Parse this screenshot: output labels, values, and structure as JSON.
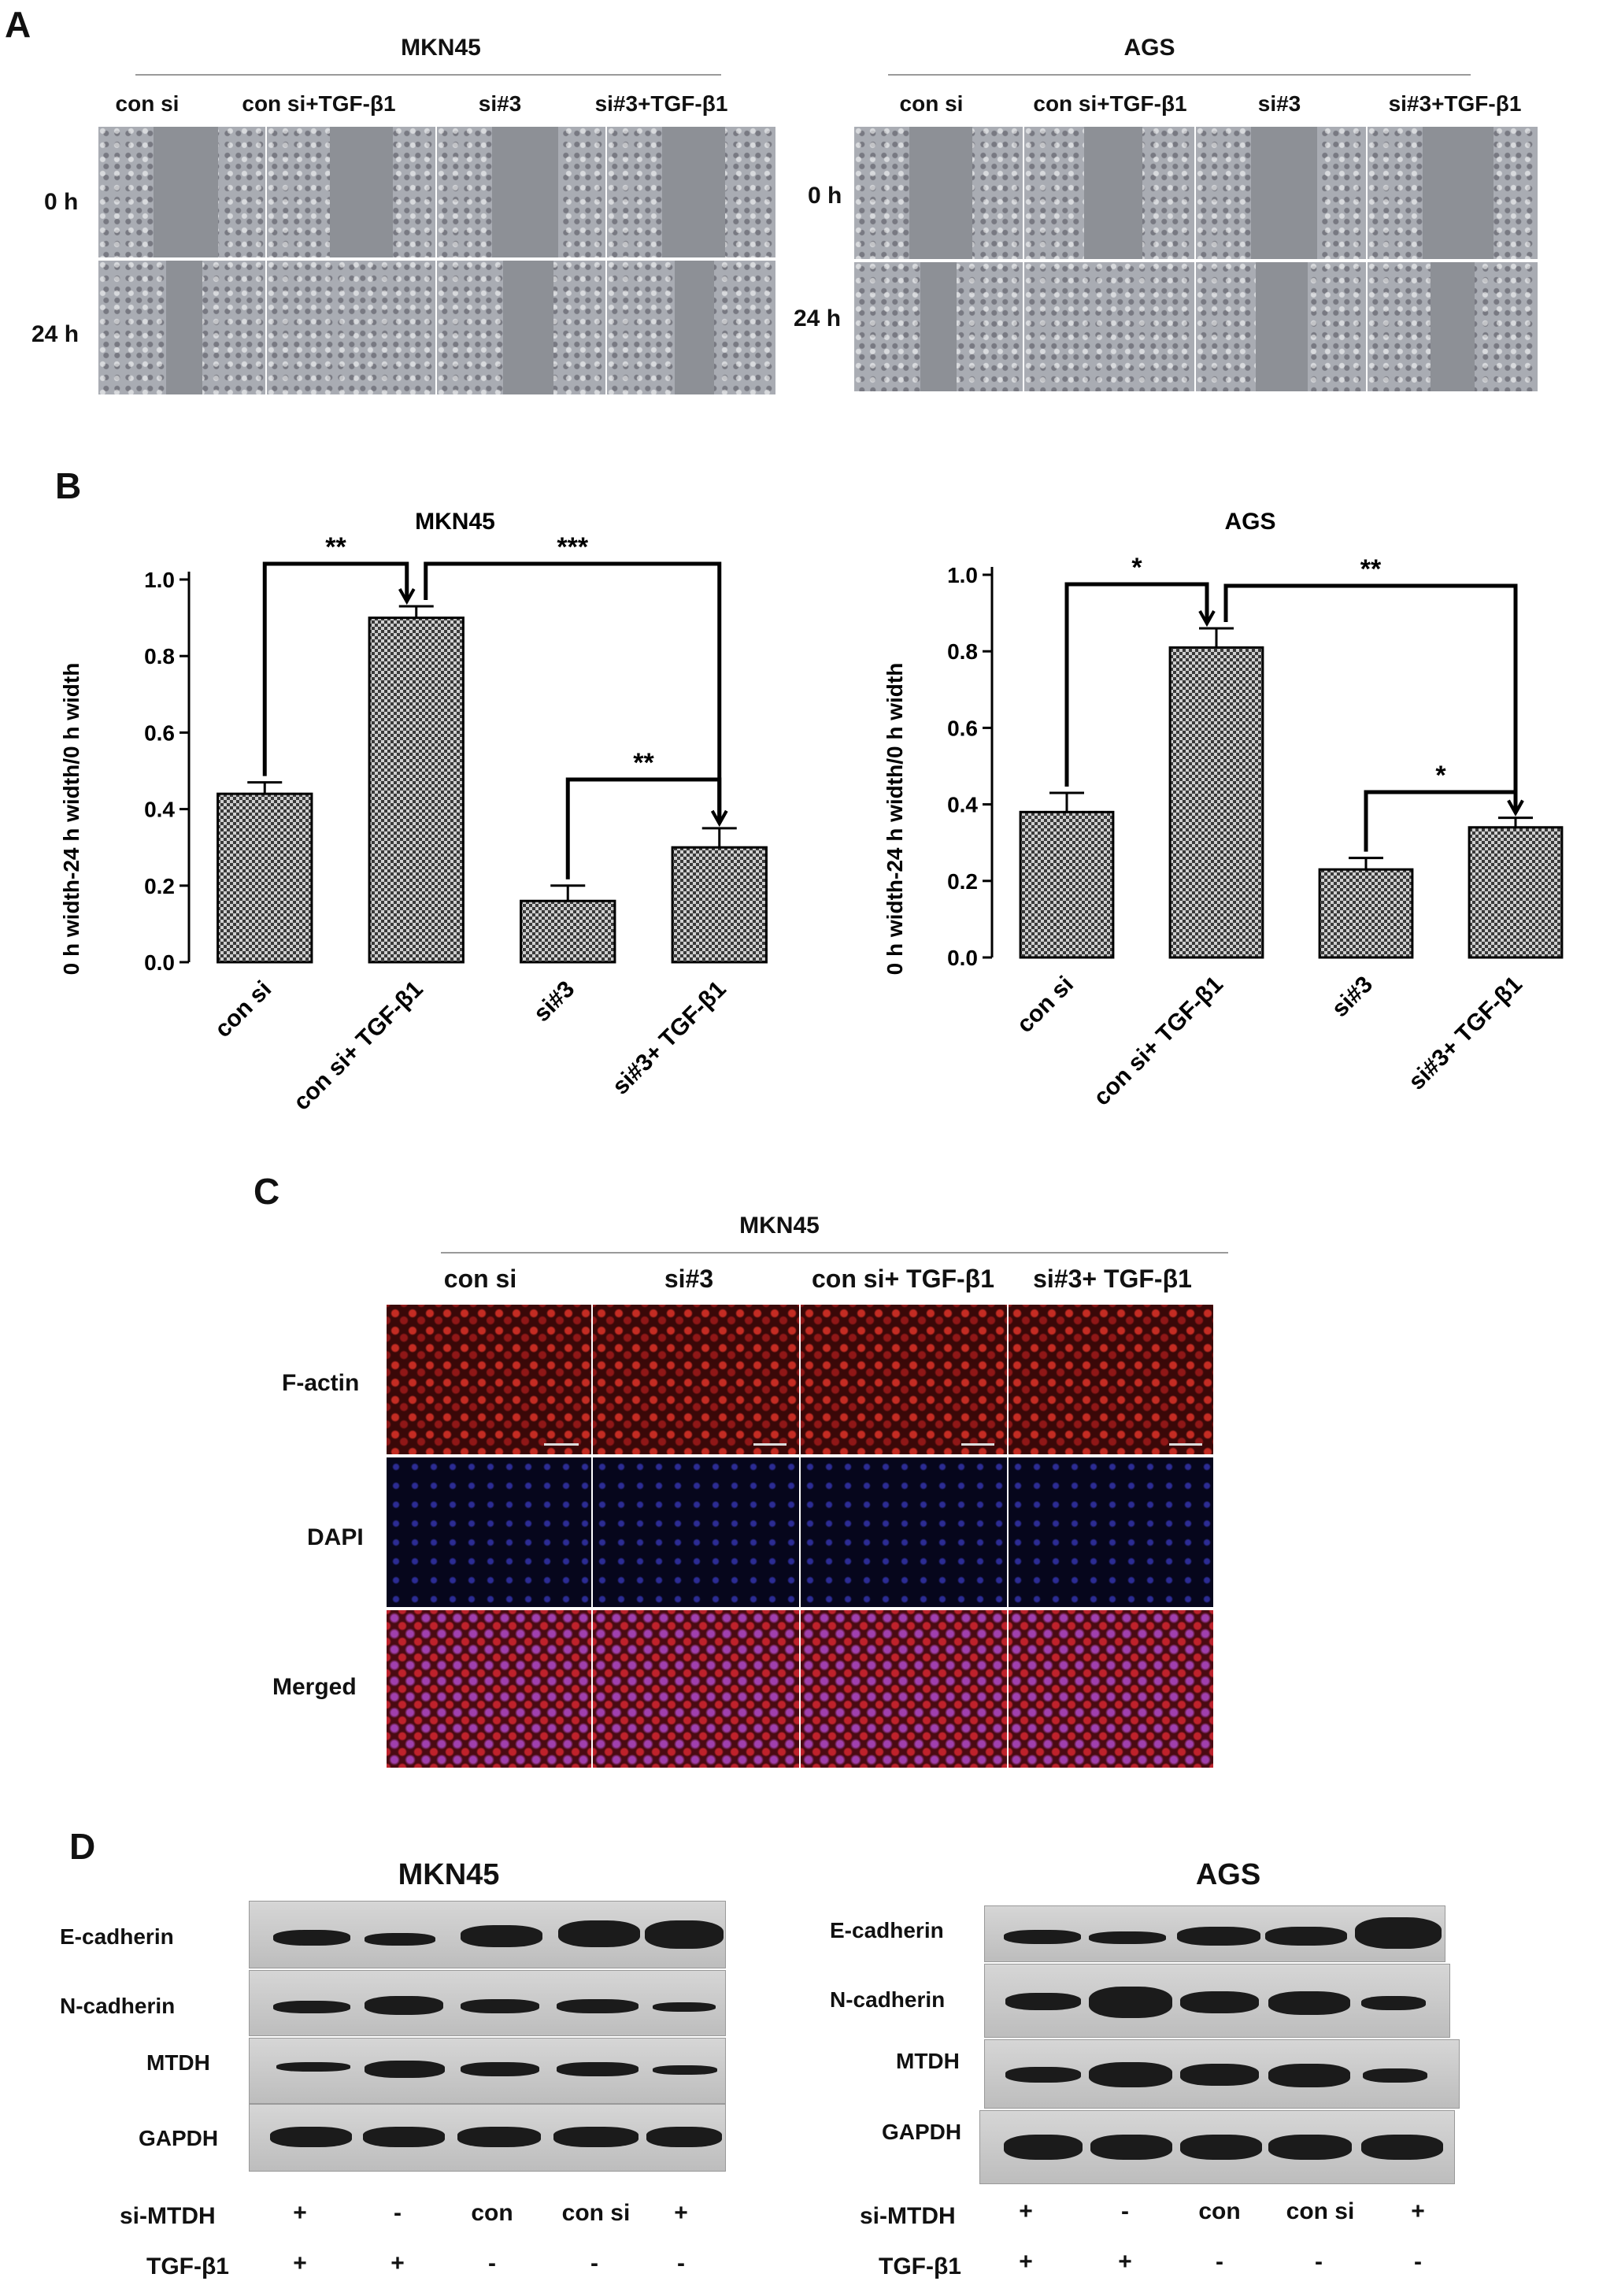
{
  "panel_A": {
    "label": "A",
    "groups": [
      {
        "title": "MKN45",
        "columns": [
          "con si",
          "con si+TGF-β1",
          "si#3",
          "si#3+TGF-β1"
        ],
        "rows": [
          "0 h",
          "24 h"
        ]
      },
      {
        "title": "AGS",
        "columns": [
          "con si",
          "con si+TGF-β1",
          "si#3",
          "si#3+TGF-β1"
        ],
        "rows": [
          "0 h",
          "24 h"
        ]
      }
    ]
  },
  "panel_B": {
    "label": "B"
  },
  "chart_data": [
    {
      "type": "bar",
      "title": "MKN45",
      "ylabel": "0 h width-24 h width/0 h width",
      "categories": [
        "con si",
        "con si+ TGF-β1",
        "si#3",
        "si#3+ TGF-β1"
      ],
      "values": [
        0.44,
        0.9,
        0.16,
        0.3
      ],
      "errors": [
        0.03,
        0.03,
        0.04,
        0.05
      ],
      "ylim": [
        0,
        1.0
      ],
      "yticks": [
        "0.0",
        "0.2",
        "0.4",
        "0.6",
        "0.8",
        "1.0"
      ],
      "significance": [
        {
          "from": 0,
          "to": 1,
          "label": "**"
        },
        {
          "from": 1,
          "to": 3,
          "label": "***"
        },
        {
          "from": 2,
          "to": 3,
          "label": "**"
        }
      ]
    },
    {
      "type": "bar",
      "title": "AGS",
      "ylabel": "0 h width-24 h width/0 h width",
      "categories": [
        "con si",
        "con si+ TGF-β1",
        "si#3",
        "si#3+ TGF-β1"
      ],
      "values": [
        0.38,
        0.81,
        0.23,
        0.34
      ],
      "errors": [
        0.05,
        0.05,
        0.03,
        0.025
      ],
      "ylim": [
        0,
        1.0
      ],
      "yticks": [
        "0.0",
        "0.2",
        "0.4",
        "0.6",
        "0.8",
        "1.0"
      ],
      "significance": [
        {
          "from": 0,
          "to": 1,
          "label": "*"
        },
        {
          "from": 1,
          "to": 3,
          "label": "**"
        },
        {
          "from": 2,
          "to": 3,
          "label": "*"
        }
      ]
    }
  ],
  "panel_C": {
    "label": "C",
    "title": "MKN45",
    "columns": [
      "con si",
      "si#3",
      "con si+ TGF-β1",
      "si#3+ TGF-β1"
    ],
    "rows": [
      "F-actin",
      "DAPI",
      "Merged"
    ]
  },
  "panel_D": {
    "label": "D",
    "groups": [
      {
        "title": "MKN45",
        "proteins": [
          "E-cadherin",
          "N-cadherin",
          "MTDH",
          "GAPDH"
        ],
        "conditions": [
          {
            "name": "si-MTDH",
            "values": [
              "+",
              "-",
              "con",
              "con si",
              "+"
            ]
          },
          {
            "name": "TGF-β1",
            "values": [
              "+",
              "+",
              "-",
              "-",
              "-"
            ]
          }
        ]
      },
      {
        "title": "AGS",
        "proteins": [
          "E-cadherin",
          "N-cadherin",
          "MTDH",
          "GAPDH"
        ],
        "conditions": [
          {
            "name": "si-MTDH",
            "values": [
              "+",
              "-",
              "con",
              "con si",
              "+"
            ]
          },
          {
            "name": "TGF-β1",
            "values": [
              "+",
              "+",
              "-",
              "-",
              "-"
            ]
          }
        ]
      }
    ]
  }
}
